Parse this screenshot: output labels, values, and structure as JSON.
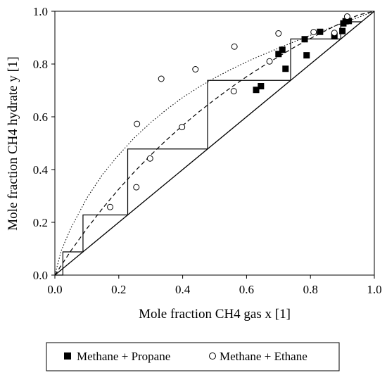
{
  "chart_data": {
    "type": "scatter",
    "xlabel": "Mole fraction CH4 gas x [1]",
    "ylabel": "Mole fraction CH4 hydrate y [1]",
    "xlim": [
      0.0,
      1.0
    ],
    "ylim": [
      0.0,
      1.0
    ],
    "x_ticks": [
      "0.0",
      "0.2",
      "0.4",
      "0.6",
      "0.8",
      "1.0"
    ],
    "y_ticks": [
      "0.0",
      "0.2",
      "0.4",
      "0.6",
      "0.8",
      "1.0"
    ],
    "grid": false,
    "legend_position": "bottom",
    "series": [
      {
        "name": "Methane + Propane",
        "marker": "filled-square",
        "color": "#000000",
        "x": [
          0.63,
          0.645,
          0.7,
          0.712,
          0.722,
          0.782,
          0.788,
          0.83,
          0.875,
          0.9,
          0.903,
          0.91,
          0.92
        ],
        "y": [
          0.702,
          0.716,
          0.838,
          0.854,
          0.782,
          0.894,
          0.833,
          0.922,
          0.905,
          0.925,
          0.954,
          0.962,
          0.963
        ]
      },
      {
        "name": "Methane + Ethane",
        "marker": "open-circle",
        "color": "#000000",
        "x": [
          0.173,
          0.255,
          0.257,
          0.298,
          0.333,
          0.398,
          0.44,
          0.56,
          0.562,
          0.672,
          0.7,
          0.81,
          0.875,
          0.915
        ],
        "y": [
          0.258,
          0.333,
          0.573,
          0.442,
          0.744,
          0.561,
          0.78,
          0.697,
          0.866,
          0.81,
          0.916,
          0.921,
          0.918,
          0.98
        ]
      }
    ],
    "curves": [
      {
        "style": "diagonal-solid",
        "x": [
          0.0,
          1.0
        ],
        "y": [
          0.0,
          1.0
        ]
      },
      {
        "style": "dashed",
        "x": [
          0,
          0.05,
          0.1,
          0.15,
          0.2,
          0.25,
          0.3,
          0.35,
          0.4,
          0.45,
          0.5,
          0.55,
          0.6,
          0.65,
          0.7,
          0.75,
          0.8,
          0.85,
          0.9,
          0.95,
          1.0
        ],
        "y": [
          0,
          0.092,
          0.176,
          0.254,
          0.326,
          0.393,
          0.455,
          0.513,
          0.567,
          0.618,
          0.665,
          0.71,
          0.752,
          0.791,
          0.828,
          0.864,
          0.897,
          0.928,
          0.958,
          0.986,
          1.0
        ]
      },
      {
        "style": "dotted",
        "x": [
          0,
          0.02,
          0.05,
          0.1,
          0.15,
          0.2,
          0.25,
          0.3,
          0.35,
          0.4,
          0.45,
          0.5,
          0.55,
          0.6,
          0.65,
          0.7,
          0.75,
          0.8,
          0.85,
          0.9,
          0.95,
          1.0
        ],
        "y": [
          0,
          0.093,
          0.178,
          0.292,
          0.383,
          0.456,
          0.522,
          0.578,
          0.628,
          0.673,
          0.712,
          0.747,
          0.779,
          0.808,
          0.835,
          0.86,
          0.885,
          0.909,
          0.932,
          0.955,
          0.977,
          1.0
        ]
      },
      {
        "style": "staircase-solid",
        "x": [
          0.0,
          0.025,
          0.025,
          0.088,
          0.088,
          0.228,
          0.228,
          0.478,
          0.478,
          0.738,
          0.738,
          0.895,
          0.895,
          0.96
        ],
        "y": [
          0.0,
          0.0,
          0.088,
          0.088,
          0.228,
          0.228,
          0.478,
          0.478,
          0.738,
          0.738,
          0.895,
          0.895,
          0.96,
          0.96
        ]
      }
    ]
  }
}
